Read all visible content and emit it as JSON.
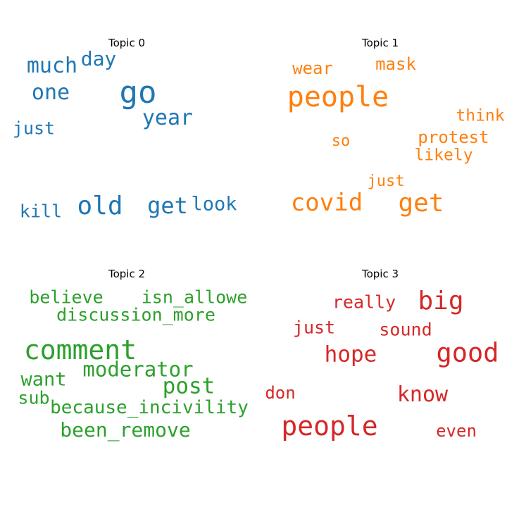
{
  "chart_data": [
    {
      "type": "wordcloud",
      "title": "Topic 0",
      "color": "#1f77b4",
      "words": [
        {
          "text": "go",
          "weight": 1.0
        },
        {
          "text": "old",
          "weight": 0.85
        },
        {
          "text": "much",
          "weight": 0.72
        },
        {
          "text": "one",
          "weight": 0.7
        },
        {
          "text": "year",
          "weight": 0.7
        },
        {
          "text": "get",
          "weight": 0.68
        },
        {
          "text": "day",
          "weight": 0.62
        },
        {
          "text": "look",
          "weight": 0.6
        },
        {
          "text": "just",
          "weight": 0.55
        },
        {
          "text": "kill",
          "weight": 0.55
        }
      ]
    },
    {
      "type": "wordcloud",
      "title": "Topic 1",
      "color": "#ff7f0e",
      "words": [
        {
          "text": "people",
          "weight": 1.0
        },
        {
          "text": "get",
          "weight": 0.9
        },
        {
          "text": "covid",
          "weight": 0.82
        },
        {
          "text": "wear",
          "weight": 0.55
        },
        {
          "text": "mask",
          "weight": 0.55
        },
        {
          "text": "protest",
          "weight": 0.55
        },
        {
          "text": "think",
          "weight": 0.52
        },
        {
          "text": "likely",
          "weight": 0.52
        },
        {
          "text": "just",
          "weight": 0.5
        },
        {
          "text": "so",
          "weight": 0.5
        }
      ]
    },
    {
      "type": "wordcloud",
      "title": "Topic 2",
      "color": "#2ca02c",
      "words": [
        {
          "text": "comment",
          "weight": 1.0
        },
        {
          "text": "moderator",
          "weight": 0.78
        },
        {
          "text": "post",
          "weight": 0.78
        },
        {
          "text": "been_remove",
          "weight": 0.75
        },
        {
          "text": "want",
          "weight": 0.7
        },
        {
          "text": "because_incivility",
          "weight": 0.62
        },
        {
          "text": "discussion_more",
          "weight": 0.62
        },
        {
          "text": "isn_allowe",
          "weight": 0.62
        },
        {
          "text": "believe",
          "weight": 0.6
        },
        {
          "text": "sub",
          "weight": 0.6
        }
      ]
    },
    {
      "type": "wordcloud",
      "title": "Topic 3",
      "color": "#d62728",
      "words": [
        {
          "text": "people",
          "weight": 1.0
        },
        {
          "text": "good",
          "weight": 0.9
        },
        {
          "text": "big",
          "weight": 0.88
        },
        {
          "text": "hope",
          "weight": 0.78
        },
        {
          "text": "know",
          "weight": 0.73
        },
        {
          "text": "really",
          "weight": 0.6
        },
        {
          "text": "just",
          "weight": 0.6
        },
        {
          "text": "sound",
          "weight": 0.58
        },
        {
          "text": "don",
          "weight": 0.57
        },
        {
          "text": "even",
          "weight": 0.57
        }
      ]
    }
  ]
}
